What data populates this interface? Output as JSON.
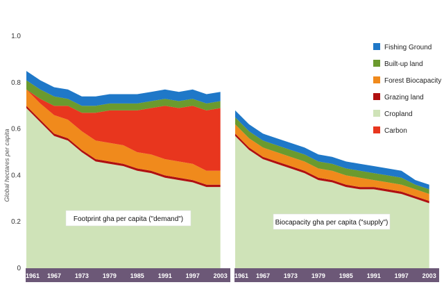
{
  "chart_data": {
    "type": "area",
    "ylabel": "Global hectares per capita",
    "ylim": [
      0,
      1.0
    ],
    "yticks": [
      "0",
      "0.2",
      "0.4",
      "0.6",
      "0.8",
      "1.0"
    ],
    "xticks": [
      "1961",
      "1967",
      "1973",
      "1979",
      "1985",
      "1991",
      "1997",
      "2003"
    ],
    "stacking_order": [
      "Cropland",
      "Grazing land",
      "Forest Biocapacity",
      "Carbon",
      "Built-up land",
      "Fishing Ground"
    ],
    "legend": [
      {
        "name": "Fishing Ground",
        "color": "#1f78c8"
      },
      {
        "name": "Built-up land",
        "color": "#6b9a2e"
      },
      {
        "name": "Forest Biocapacity",
        "color": "#f08a1c"
      },
      {
        "name": "Grazing land",
        "color": "#b01010"
      },
      {
        "name": "Cropland",
        "color": "#cfe3b8"
      },
      {
        "name": "Carbon",
        "color": "#e8361e"
      }
    ],
    "panels": [
      {
        "label": "Footprint gha per capita (\"demand\")",
        "x": [
          1961,
          1964,
          1967,
          1970,
          1973,
          1976,
          1979,
          1982,
          1985,
          1988,
          1991,
          1994,
          1997,
          2000,
          2003
        ],
        "series": [
          {
            "name": "Cropland",
            "values": [
              0.69,
              0.63,
              0.57,
              0.55,
              0.5,
              0.46,
              0.45,
              0.44,
              0.42,
              0.41,
              0.39,
              0.38,
              0.37,
              0.35,
              0.35
            ]
          },
          {
            "name": "Grazing land",
            "values": [
              0.01,
              0.01,
              0.01,
              0.01,
              0.01,
              0.01,
              0.01,
              0.01,
              0.01,
              0.01,
              0.01,
              0.01,
              0.01,
              0.01,
              0.01
            ]
          },
          {
            "name": "Forest Biocapacity",
            "values": [
              0.07,
              0.07,
              0.08,
              0.08,
              0.08,
              0.08,
              0.08,
              0.08,
              0.07,
              0.07,
              0.07,
              0.07,
              0.07,
              0.06,
              0.06
            ]
          },
          {
            "name": "Carbon",
            "values": [
              0.0,
              0.02,
              0.04,
              0.06,
              0.08,
              0.12,
              0.14,
              0.15,
              0.18,
              0.2,
              0.23,
              0.23,
              0.25,
              0.26,
              0.27
            ]
          },
          {
            "name": "Built-up land",
            "values": [
              0.04,
              0.04,
              0.04,
              0.03,
              0.03,
              0.03,
              0.03,
              0.03,
              0.03,
              0.03,
              0.03,
              0.03,
              0.03,
              0.03,
              0.03
            ]
          },
          {
            "name": "Fishing Ground",
            "values": [
              0.04,
              0.04,
              0.04,
              0.04,
              0.04,
              0.04,
              0.04,
              0.04,
              0.04,
              0.04,
              0.04,
              0.04,
              0.04,
              0.04,
              0.04
            ]
          }
        ]
      },
      {
        "label": "Biocapacity gha per capita (\"supply\")",
        "x": [
          1961,
          1964,
          1967,
          1970,
          1973,
          1976,
          1979,
          1982,
          1985,
          1988,
          1991,
          1994,
          1997,
          2000,
          2003
        ],
        "series": [
          {
            "name": "Cropland",
            "values": [
              0.57,
              0.51,
              0.47,
              0.45,
              0.43,
              0.41,
              0.38,
              0.37,
              0.35,
              0.34,
              0.34,
              0.33,
              0.32,
              0.3,
              0.28
            ]
          },
          {
            "name": "Grazing land",
            "values": [
              0.01,
              0.01,
              0.01,
              0.01,
              0.01,
              0.01,
              0.01,
              0.01,
              0.01,
              0.01,
              0.01,
              0.01,
              0.01,
              0.01,
              0.01
            ]
          },
          {
            "name": "Forest Biocapacity",
            "values": [
              0.04,
              0.04,
              0.04,
              0.04,
              0.04,
              0.04,
              0.04,
              0.04,
              0.04,
              0.04,
              0.03,
              0.03,
              0.03,
              0.03,
              0.03
            ]
          },
          {
            "name": "Carbon",
            "values": [
              0,
              0,
              0,
              0,
              0,
              0,
              0,
              0,
              0,
              0,
              0,
              0,
              0,
              0,
              0
            ]
          },
          {
            "name": "Built-up land",
            "values": [
              0.03,
              0.03,
              0.03,
              0.03,
              0.03,
              0.03,
              0.03,
              0.03,
              0.03,
              0.03,
              0.03,
              0.03,
              0.03,
              0.02,
              0.02
            ]
          },
          {
            "name": "Fishing Ground",
            "values": [
              0.03,
              0.03,
              0.03,
              0.03,
              0.03,
              0.03,
              0.03,
              0.03,
              0.03,
              0.03,
              0.03,
              0.03,
              0.03,
              0.02,
              0.02
            ]
          }
        ]
      }
    ]
  }
}
